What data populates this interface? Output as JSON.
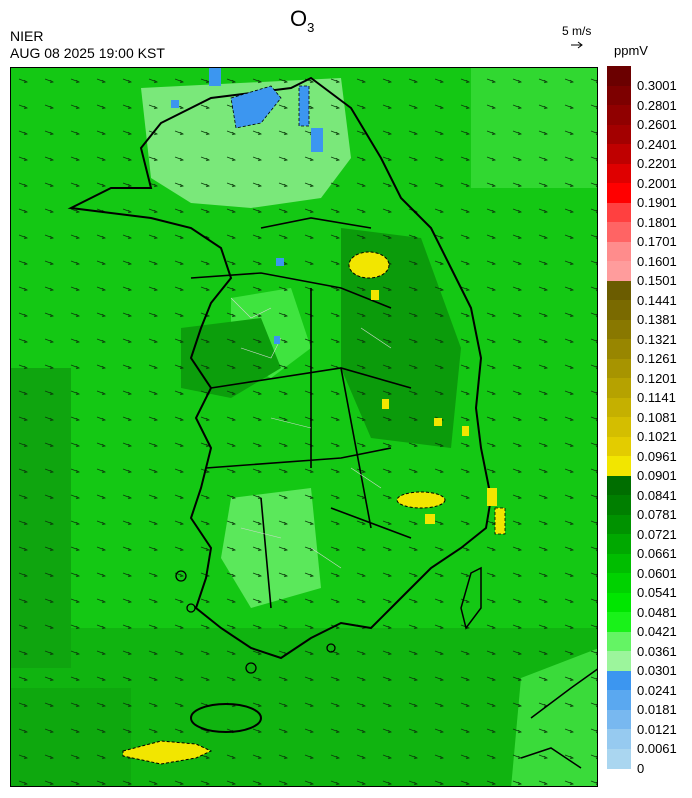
{
  "header": {
    "title_main": "O",
    "title_sub": "3",
    "organization": "NIER",
    "datetime": "AUG 08 2025 19:00 KST",
    "wind_scale": "5 m/s",
    "unit": "ppmV"
  },
  "legend": {
    "labels": [
      "0.3001",
      "0.2801",
      "0.2601",
      "0.2401",
      "0.2201",
      "0.2001",
      "0.1901",
      "0.1801",
      "0.1701",
      "0.1601",
      "0.1501",
      "0.1441",
      "0.1381",
      "0.1321",
      "0.1261",
      "0.1201",
      "0.1141",
      "0.1081",
      "0.1021",
      "0.0961",
      "0.0901",
      "0.0841",
      "0.0781",
      "0.0721",
      "0.0661",
      "0.0601",
      "0.0541",
      "0.0481",
      "0.0421",
      "0.0361",
      "0.0301",
      "0.0241",
      "0.0181",
      "0.0121",
      "0.0061",
      "0"
    ],
    "colors": [
      "#6b0000",
      "#7d0000",
      "#900000",
      "#a30000",
      "#bf0000",
      "#df0000",
      "#ff0000",
      "#ff4040",
      "#ff6464",
      "#ff8c8c",
      "#ff9c9c",
      "#6b5c00",
      "#7a6a00",
      "#897800",
      "#988600",
      "#a79400",
      "#b6a200",
      "#c5b000",
      "#d4be00",
      "#e3cc00",
      "#f2e600",
      "#006e00",
      "#007f00",
      "#009200",
      "#00a800",
      "#00bd00",
      "#00d200",
      "#00e600",
      "#19f219",
      "#64f464",
      "#9cf59c",
      "#3c96f0",
      "#5aa8f0",
      "#78b8f0",
      "#96caf0",
      "#aad6f0"
    ]
  },
  "map": {
    "regions": [
      "high-ozone-northeast",
      "high-ozone-central-east",
      "high-ozone-southeast",
      "high-ozone-east-coast",
      "high-ozone-jeju-south",
      "low-ozone-north"
    ]
  }
}
